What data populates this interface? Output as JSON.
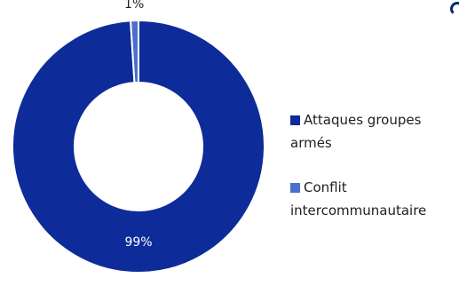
{
  "chart_data": {
    "type": "pie",
    "donut": true,
    "legend_position": "right",
    "categories": [
      "Attaques groupes armés",
      "Conflit intercommunautaire"
    ],
    "values": [
      99,
      1
    ],
    "data_labels": [
      "99%",
      "1%"
    ],
    "colors": [
      "#0d2b99",
      "#4a6fcf"
    ]
  },
  "legend": {
    "items": [
      {
        "label": "Attaques groupes armés",
        "color": "#0d2b99"
      },
      {
        "label": "Conflit intercommunautaire",
        "color": "#4a6fcf"
      }
    ]
  },
  "colors": {
    "separator": "#ffffff",
    "label_light": "#ffffff",
    "label_dark": "#1f1f1f"
  }
}
